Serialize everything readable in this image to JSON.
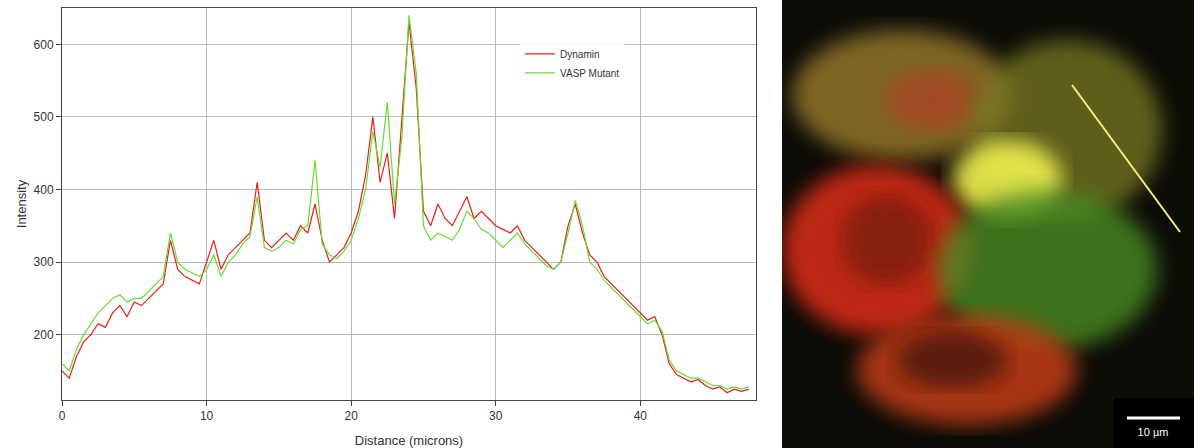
{
  "chart_data": {
    "type": "line",
    "x_label": "Distance (microns)",
    "y_label": "Intensity",
    "x": [
      0,
      0.5,
      1,
      1.5,
      2,
      2.5,
      3,
      3.5,
      4,
      4.5,
      5,
      5.5,
      6,
      6.5,
      7,
      7.5,
      8,
      8.5,
      9,
      9.5,
      10,
      10.5,
      11,
      11.5,
      12,
      12.5,
      13,
      13.5,
      14,
      14.5,
      15,
      15.5,
      16,
      16.5,
      17,
      17.5,
      18,
      18.5,
      19,
      19.5,
      20,
      20.5,
      21,
      21.5,
      22,
      22.5,
      23,
      23.5,
      24,
      24.5,
      25,
      25.5,
      26,
      26.5,
      27,
      27.5,
      28,
      28.5,
      29,
      29.5,
      30,
      30.5,
      31,
      31.5,
      32,
      32.5,
      33,
      33.5,
      34,
      34.5,
      35,
      35.5,
      36,
      36.5,
      37,
      37.5,
      38,
      38.5,
      39,
      39.5,
      40,
      40.5,
      41,
      41.5,
      42,
      42.5,
      43,
      43.5,
      44,
      44.5,
      45,
      45.5,
      46,
      46.5,
      47,
      47.5
    ],
    "series": [
      {
        "name": "Dynamin",
        "color": "#e8201a",
        "values": [
          150,
          140,
          170,
          190,
          200,
          215,
          210,
          230,
          240,
          225,
          245,
          240,
          250,
          260,
          270,
          330,
          290,
          280,
          275,
          270,
          300,
          330,
          290,
          310,
          320,
          330,
          340,
          410,
          330,
          320,
          330,
          340,
          330,
          350,
          340,
          380,
          330,
          300,
          310,
          320,
          340,
          370,
          420,
          500,
          410,
          450,
          360,
          500,
          630,
          540,
          370,
          350,
          380,
          360,
          350,
          370,
          390,
          360,
          370,
          360,
          350,
          345,
          340,
          350,
          330,
          320,
          310,
          300,
          290,
          300,
          350,
          380,
          340,
          310,
          300,
          280,
          270,
          260,
          250,
          240,
          230,
          220,
          225,
          200,
          160,
          145,
          140,
          135,
          138,
          130,
          125,
          128,
          120,
          125,
          122,
          125
        ]
      },
      {
        "name": "VASP Mutant",
        "color": "#66dd33",
        "values": [
          160,
          150,
          180,
          200,
          215,
          230,
          240,
          250,
          255,
          245,
          250,
          250,
          260,
          270,
          280,
          340,
          300,
          290,
          285,
          280,
          290,
          310,
          280,
          300,
          310,
          325,
          335,
          390,
          320,
          315,
          320,
          330,
          325,
          345,
          350,
          440,
          325,
          310,
          305,
          315,
          330,
          360,
          400,
          480,
          430,
          520,
          380,
          470,
          640,
          560,
          350,
          330,
          340,
          335,
          330,
          345,
          370,
          360,
          345,
          340,
          330,
          320,
          330,
          340,
          325,
          315,
          305,
          295,
          290,
          300,
          340,
          385,
          350,
          300,
          290,
          275,
          265,
          255,
          245,
          235,
          225,
          215,
          220,
          205,
          165,
          150,
          145,
          140,
          140,
          135,
          130,
          130,
          125,
          128,
          125,
          128
        ]
      }
    ],
    "xlim": [
      0,
      48
    ],
    "xticks": [
      0,
      10,
      20,
      30,
      40
    ],
    "ylim": [
      110,
      650
    ],
    "yticks": [
      200,
      300,
      400,
      500,
      600
    ],
    "grid": true,
    "legend": "upper right"
  },
  "image": {
    "scale_bar": "10 µm"
  }
}
